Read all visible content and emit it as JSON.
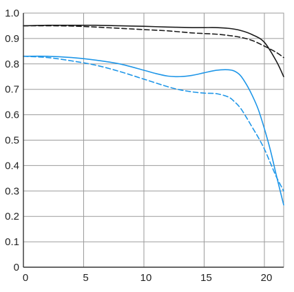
{
  "chart_data": {
    "type": "line",
    "title": "",
    "xlabel": "",
    "ylabel": "",
    "xlim": [
      0,
      21.6
    ],
    "ylim": [
      0,
      1.0
    ],
    "grid": true,
    "x_ticks": [
      0,
      5,
      10,
      15,
      20
    ],
    "y_ticks": [
      0,
      0.1,
      0.2,
      0.3,
      0.4,
      0.5,
      0.6,
      0.7,
      0.8,
      0.9,
      1.0
    ],
    "x_tick_labels": [
      "0",
      "5",
      "10",
      "15",
      "20"
    ],
    "y_tick_labels": [
      "0",
      "0.1",
      "0.2",
      "0.3",
      "0.4",
      "0.5",
      "0.6",
      "0.7",
      "0.8",
      "0.9",
      "1.0"
    ],
    "series": [
      {
        "color": "#1a1a1a",
        "style": "solid",
        "x": [
          0,
          2,
          4,
          6,
          8,
          10,
          12,
          14,
          15,
          16,
          17,
          18,
          19,
          20,
          21,
          21.6
        ],
        "y": [
          0.95,
          0.952,
          0.952,
          0.952,
          0.95,
          0.948,
          0.945,
          0.943,
          0.943,
          0.943,
          0.94,
          0.932,
          0.915,
          0.885,
          0.81,
          0.75
        ]
      },
      {
        "color": "#1a1a1a",
        "style": "dashed",
        "x": [
          0,
          2,
          4,
          6,
          8,
          10,
          12,
          14,
          16,
          17,
          18,
          19,
          20,
          21,
          21.6
        ],
        "y": [
          0.95,
          0.95,
          0.949,
          0.945,
          0.94,
          0.935,
          0.93,
          0.922,
          0.917,
          0.912,
          0.905,
          0.892,
          0.87,
          0.845,
          0.825
        ]
      },
      {
        "color": "#1e96e8",
        "style": "solid",
        "x": [
          0,
          2,
          4,
          6,
          8,
          10,
          11,
          12,
          13,
          14,
          15,
          16,
          17,
          17.5,
          18,
          18.5,
          19,
          19.5,
          20,
          20.5,
          21,
          21.6
        ],
        "y": [
          0.83,
          0.83,
          0.825,
          0.815,
          0.8,
          0.775,
          0.762,
          0.752,
          0.75,
          0.755,
          0.765,
          0.775,
          0.777,
          0.772,
          0.755,
          0.72,
          0.675,
          0.62,
          0.545,
          0.46,
          0.36,
          0.245
        ]
      },
      {
        "color": "#1e96e8",
        "style": "dashed",
        "x": [
          0,
          2,
          4,
          6,
          8,
          10,
          12,
          13,
          14,
          15,
          16,
          17,
          17.5,
          18,
          18.5,
          19,
          19.5,
          20,
          20.5,
          21,
          21.6
        ],
        "y": [
          0.83,
          0.825,
          0.812,
          0.795,
          0.77,
          0.74,
          0.71,
          0.698,
          0.69,
          0.685,
          0.683,
          0.67,
          0.652,
          0.627,
          0.59,
          0.55,
          0.51,
          0.465,
          0.41,
          0.355,
          0.3
        ]
      }
    ]
  }
}
